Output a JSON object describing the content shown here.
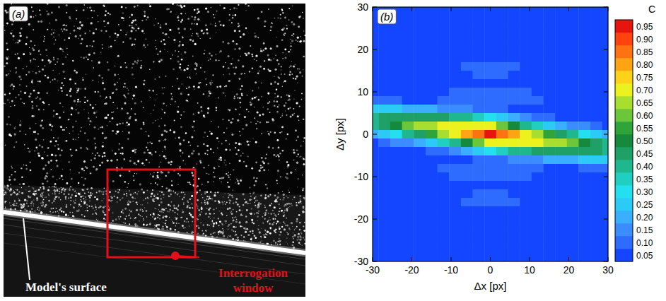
{
  "image_panel": {
    "label": "(a)",
    "surface_label": "Model's surface",
    "window_label": "Interrogation window"
  },
  "chart_data": {
    "type": "heatmap",
    "panel_label": "(b)",
    "xlabel": "Δx [px]",
    "ylabel": "Δy [px]",
    "xlim": [
      -30,
      30
    ],
    "ylim": [
      -30,
      30
    ],
    "xticks": [
      -30,
      -20,
      -10,
      0,
      10,
      20,
      30
    ],
    "yticks": [
      -30,
      -20,
      -10,
      0,
      10,
      20,
      30
    ],
    "x": [
      -30,
      -27,
      -24,
      -21,
      -18,
      -15,
      -12,
      -9,
      -6,
      -3,
      0,
      3,
      6,
      9,
      12,
      15,
      18,
      21,
      24,
      27,
      30
    ],
    "y": [
      30,
      28,
      26,
      24,
      22,
      20,
      18,
      16,
      14,
      12,
      10,
      8,
      6,
      4,
      2,
      0,
      -2,
      -4,
      -6,
      -8,
      -10,
      -12,
      -14,
      -16,
      -18,
      -20,
      -22,
      -24,
      -26,
      -28,
      -30
    ],
    "cells": [
      [
        0.05,
        0.05,
        0.05,
        0.05,
        0.05,
        0.05,
        0.05,
        0.05,
        0.05,
        0.05,
        0.05,
        0.05,
        0.05,
        0.05,
        0.05,
        0.05,
        0.05,
        0.05,
        0.05,
        0.05,
        0.05
      ],
      [
        0.05,
        0.05,
        0.05,
        0.05,
        0.05,
        0.05,
        0.05,
        0.05,
        0.05,
        0.05,
        0.05,
        0.05,
        0.05,
        0.05,
        0.05,
        0.05,
        0.05,
        0.05,
        0.05,
        0.05,
        0.05
      ],
      [
        0.05,
        0.05,
        0.05,
        0.05,
        0.05,
        0.05,
        0.05,
        0.05,
        0.05,
        0.05,
        0.05,
        0.05,
        0.05,
        0.05,
        0.05,
        0.05,
        0.05,
        0.05,
        0.05,
        0.05,
        0.05
      ],
      [
        0.05,
        0.05,
        0.05,
        0.05,
        0.05,
        0.05,
        0.05,
        0.05,
        0.05,
        0.05,
        0.05,
        0.05,
        0.05,
        0.05,
        0.05,
        0.05,
        0.05,
        0.05,
        0.05,
        0.05,
        0.05
      ],
      [
        0.05,
        0.05,
        0.05,
        0.05,
        0.05,
        0.05,
        0.05,
        0.05,
        0.05,
        0.05,
        0.05,
        0.05,
        0.05,
        0.05,
        0.05,
        0.05,
        0.05,
        0.05,
        0.05,
        0.05,
        0.05
      ],
      [
        0.05,
        0.05,
        0.05,
        0.05,
        0.05,
        0.05,
        0.05,
        0.05,
        0.05,
        0.05,
        0.05,
        0.05,
        0.05,
        0.05,
        0.05,
        0.05,
        0.05,
        0.05,
        0.05,
        0.05,
        0.05
      ],
      [
        0.05,
        0.05,
        0.05,
        0.05,
        0.05,
        0.05,
        0.05,
        0.05,
        0.05,
        0.05,
        0.05,
        0.05,
        0.05,
        0.05,
        0.05,
        0.05,
        0.05,
        0.05,
        0.05,
        0.05,
        0.05
      ],
      [
        0.05,
        0.05,
        0.05,
        0.05,
        0.05,
        0.05,
        0.05,
        0.05,
        0.1,
        0.1,
        0.1,
        0.1,
        0.1,
        0.05,
        0.05,
        0.05,
        0.05,
        0.05,
        0.05,
        0.05,
        0.05
      ],
      [
        0.05,
        0.05,
        0.05,
        0.05,
        0.05,
        0.05,
        0.05,
        0.05,
        0.05,
        0.1,
        0.1,
        0.1,
        0.05,
        0.05,
        0.05,
        0.05,
        0.05,
        0.05,
        0.05,
        0.05,
        0.05
      ],
      [
        0.05,
        0.05,
        0.05,
        0.05,
        0.05,
        0.05,
        0.05,
        0.05,
        0.05,
        0.05,
        0.05,
        0.05,
        0.05,
        0.05,
        0.05,
        0.05,
        0.05,
        0.05,
        0.05,
        0.05,
        0.05
      ],
      [
        0.05,
        0.05,
        0.05,
        0.05,
        0.05,
        0.05,
        0.05,
        0.1,
        0.1,
        0.1,
        0.1,
        0.1,
        0.1,
        0.1,
        0.05,
        0.05,
        0.05,
        0.05,
        0.05,
        0.05,
        0.05
      ],
      [
        0.1,
        0.1,
        0.1,
        0.05,
        0.05,
        0.05,
        0.1,
        0.1,
        0.1,
        0.1,
        0.1,
        0.1,
        0.1,
        0.1,
        0.1,
        0.05,
        0.05,
        0.05,
        0.05,
        0.05,
        0.05
      ],
      [
        0.25,
        0.25,
        0.25,
        0.2,
        0.2,
        0.2,
        0.15,
        0.15,
        0.15,
        0.1,
        0.1,
        0.1,
        0.05,
        0.05,
        0.05,
        0.05,
        0.05,
        0.05,
        0.05,
        0.05,
        0.05
      ],
      [
        0.4,
        0.45,
        0.45,
        0.45,
        0.45,
        0.45,
        0.45,
        0.4,
        0.4,
        0.35,
        0.3,
        0.25,
        0.2,
        0.15,
        0.1,
        0.1,
        0.05,
        0.05,
        0.05,
        0.05,
        0.05
      ],
      [
        0.4,
        0.45,
        0.5,
        0.6,
        0.65,
        0.65,
        0.7,
        0.7,
        0.7,
        0.7,
        0.7,
        0.6,
        0.5,
        0.4,
        0.35,
        0.25,
        0.2,
        0.15,
        0.15,
        0.1,
        0.05
      ],
      [
        0.2,
        0.25,
        0.3,
        0.4,
        0.45,
        0.55,
        0.65,
        0.7,
        0.8,
        0.85,
        0.95,
        0.85,
        0.8,
        0.7,
        0.65,
        0.55,
        0.45,
        0.4,
        0.3,
        0.25,
        0.2
      ],
      [
        0.05,
        0.1,
        0.15,
        0.15,
        0.2,
        0.25,
        0.35,
        0.4,
        0.5,
        0.6,
        0.7,
        0.7,
        0.7,
        0.7,
        0.7,
        0.65,
        0.65,
        0.6,
        0.5,
        0.45,
        0.4
      ],
      [
        0.05,
        0.05,
        0.05,
        0.05,
        0.05,
        0.1,
        0.1,
        0.15,
        0.2,
        0.25,
        0.3,
        0.35,
        0.4,
        0.4,
        0.45,
        0.45,
        0.45,
        0.45,
        0.45,
        0.45,
        0.4
      ],
      [
        0.05,
        0.05,
        0.05,
        0.05,
        0.05,
        0.05,
        0.05,
        0.05,
        0.05,
        0.1,
        0.1,
        0.1,
        0.15,
        0.15,
        0.15,
        0.2,
        0.2,
        0.2,
        0.25,
        0.25,
        0.25
      ],
      [
        0.05,
        0.05,
        0.05,
        0.05,
        0.05,
        0.05,
        0.1,
        0.1,
        0.1,
        0.1,
        0.1,
        0.1,
        0.1,
        0.1,
        0.1,
        0.05,
        0.05,
        0.05,
        0.1,
        0.1,
        0.1
      ],
      [
        0.05,
        0.05,
        0.05,
        0.05,
        0.05,
        0.05,
        0.05,
        0.1,
        0.1,
        0.1,
        0.1,
        0.1,
        0.1,
        0.1,
        0.05,
        0.05,
        0.05,
        0.05,
        0.05,
        0.05,
        0.05
      ],
      [
        0.05,
        0.05,
        0.05,
        0.05,
        0.05,
        0.05,
        0.05,
        0.05,
        0.05,
        0.05,
        0.05,
        0.05,
        0.05,
        0.05,
        0.05,
        0.05,
        0.05,
        0.05,
        0.05,
        0.05,
        0.05
      ],
      [
        0.05,
        0.05,
        0.05,
        0.05,
        0.05,
        0.05,
        0.05,
        0.05,
        0.05,
        0.1,
        0.1,
        0.1,
        0.05,
        0.05,
        0.05,
        0.05,
        0.05,
        0.05,
        0.05,
        0.05,
        0.05
      ],
      [
        0.05,
        0.05,
        0.05,
        0.05,
        0.05,
        0.05,
        0.05,
        0.05,
        0.1,
        0.1,
        0.1,
        0.1,
        0.1,
        0.05,
        0.05,
        0.05,
        0.05,
        0.05,
        0.05,
        0.05,
        0.05
      ],
      [
        0.05,
        0.05,
        0.05,
        0.05,
        0.05,
        0.05,
        0.05,
        0.05,
        0.05,
        0.05,
        0.05,
        0.05,
        0.05,
        0.05,
        0.05,
        0.05,
        0.05,
        0.05,
        0.05,
        0.05,
        0.05
      ],
      [
        0.05,
        0.05,
        0.05,
        0.05,
        0.05,
        0.05,
        0.05,
        0.05,
        0.05,
        0.05,
        0.05,
        0.05,
        0.05,
        0.05,
        0.05,
        0.05,
        0.05,
        0.05,
        0.05,
        0.05,
        0.05
      ],
      [
        0.05,
        0.05,
        0.05,
        0.05,
        0.05,
        0.05,
        0.05,
        0.05,
        0.05,
        0.05,
        0.05,
        0.05,
        0.05,
        0.05,
        0.05,
        0.05,
        0.05,
        0.05,
        0.05,
        0.05,
        0.05
      ],
      [
        0.05,
        0.05,
        0.05,
        0.05,
        0.05,
        0.05,
        0.05,
        0.05,
        0.05,
        0.05,
        0.05,
        0.05,
        0.05,
        0.05,
        0.05,
        0.05,
        0.05,
        0.05,
        0.05,
        0.05,
        0.05
      ],
      [
        0.05,
        0.05,
        0.05,
        0.05,
        0.05,
        0.05,
        0.05,
        0.05,
        0.05,
        0.05,
        0.05,
        0.05,
        0.05,
        0.05,
        0.05,
        0.05,
        0.05,
        0.05,
        0.05,
        0.05,
        0.05
      ],
      [
        0.05,
        0.05,
        0.05,
        0.05,
        0.05,
        0.05,
        0.05,
        0.05,
        0.05,
        0.05,
        0.05,
        0.05,
        0.05,
        0.05,
        0.05,
        0.05,
        0.05,
        0.05,
        0.05,
        0.05,
        0.05
      ],
      [
        0.05,
        0.05,
        0.05,
        0.05,
        0.05,
        0.05,
        0.05,
        0.05,
        0.05,
        0.05,
        0.05,
        0.05,
        0.05,
        0.05,
        0.05,
        0.05,
        0.05,
        0.05,
        0.05,
        0.05,
        0.05
      ]
    ],
    "colorbar": {
      "title": "C",
      "range": [
        0.025,
        0.975
      ],
      "ticks": [
        0.05,
        {
          "value": 0.1,
          "label": "0.10"
        },
        0.15,
        {
          "value": 0.2,
          "label": "0.20"
        },
        0.25,
        {
          "value": 0.3,
          "label": "0.30"
        },
        0.35,
        {
          "value": 0.4,
          "label": "0.40"
        },
        0.45,
        {
          "value": 0.5,
          "label": "0.50"
        },
        0.55,
        {
          "value": 0.6,
          "label": "0.60"
        },
        0.65,
        {
          "value": 0.7,
          "label": "0.70"
        },
        0.75,
        {
          "value": 0.8,
          "label": "0.80"
        },
        0.85,
        {
          "value": 0.9,
          "label": "0.90"
        },
        0.95
      ],
      "colors": [
        "#1446ff",
        "#2e6cff",
        "#3a8cff",
        "#3aaeff",
        "#2ccbf5",
        "#22e0ee",
        "#20cfc0",
        "#1fb88e",
        "#1ea066",
        "#168a3c",
        "#2ea43a",
        "#6cc63a",
        "#a8de30",
        "#ecf21e",
        "#ffd21a",
        "#ffa514",
        "#ff7212",
        "#ff420e",
        "#e8140e"
      ]
    }
  }
}
